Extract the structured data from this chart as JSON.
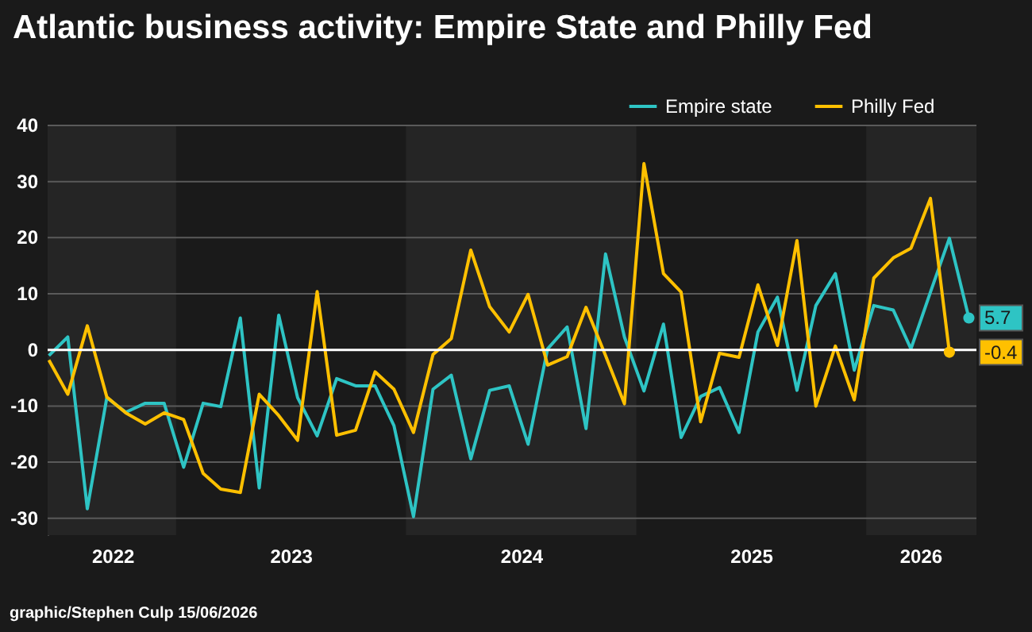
{
  "chart_data": {
    "type": "line",
    "title": "Atlantic business activity: Empire State and Philly Fed",
    "x": [
      "2022-06-13",
      "2022-07-13",
      "2022-08-13",
      "2022-09-13",
      "2022-10-13",
      "2022-11-13",
      "2022-12-13",
      "2023-01-13",
      "2023-02-13",
      "2023-03-13",
      "2023-04-13",
      "2023-05-13",
      "2023-06-13",
      "2023-07-13",
      "2023-08-13",
      "2023-09-13",
      "2023-10-13",
      "2023-11-13",
      "2023-12-13",
      "2024-01-13",
      "2024-02-13",
      "2024-03-13",
      "2024-04-13",
      "2024-05-13",
      "2024-06-13",
      "2024-07-13",
      "2024-08-13",
      "2024-09-13",
      "2024-10-13",
      "2024-11-13",
      "2024-12-13",
      "2025-01-13",
      "2025-02-13",
      "2025-03-13",
      "2025-04-13",
      "2025-05-13",
      "2025-06-13",
      "2025-07-13",
      "2025-08-13",
      "2025-09-13",
      "2025-10-13",
      "2025-11-13",
      "2025-12-13",
      "2026-01-13",
      "2026-02-13",
      "2026-03-13",
      "2026-04-13",
      "2026-05-13",
      "2026-06-13"
    ],
    "series": [
      {
        "name": "Empire state",
        "color": "#2ec4c4",
        "values": [
          -1.0,
          2.3,
          -28.3,
          -8.5,
          -11.1,
          -9.5,
          -9.5,
          -20.9,
          -9.5,
          -10.1,
          5.7,
          -24.6,
          6.2,
          -8.5,
          -15.3,
          -5.1,
          -6.4,
          -6.4,
          -13.5,
          -29.7,
          -7.0,
          -4.5,
          -19.4,
          -7.2,
          -6.4,
          -16.8,
          0.2,
          4.1,
          -14.0,
          17.1,
          2.3,
          -7.3,
          4.6,
          -15.6,
          -8.3,
          -6.7,
          -14.7,
          3.2,
          9.4,
          -7.2,
          7.9,
          13.6,
          -3.6,
          7.9,
          7.1,
          0.2,
          10.3,
          19.9,
          5.7
        ],
        "value_labels": [
          null,
          null,
          null,
          null,
          null,
          null,
          null,
          null,
          null,
          null,
          null,
          null,
          null,
          null,
          null,
          null,
          null,
          null,
          null,
          null,
          null,
          null,
          null,
          null,
          null,
          null,
          null,
          null,
          null,
          null,
          null,
          null,
          null,
          null,
          null,
          null,
          null,
          null,
          null,
          null,
          null,
          null,
          null,
          null,
          null,
          null,
          null,
          null,
          "5.7"
        ]
      },
      {
        "name": "Philly Fed",
        "color": "#ffc000",
        "values": [
          -1.8,
          -7.9,
          4.3,
          -8.4,
          -11.2,
          -13.2,
          -11.2,
          -12.4,
          -22.0,
          -24.8,
          -25.4,
          -7.9,
          -11.7,
          -16.1,
          10.4,
          -15.2,
          -14.3,
          -3.9,
          -7.0,
          -14.7,
          -0.8,
          2.0,
          17.8,
          7.7,
          3.2,
          9.9,
          -2.7,
          -1.2,
          7.6,
          -1.0,
          -9.6,
          33.2,
          13.6,
          10.3,
          -12.8,
          -0.6,
          -1.3,
          11.6,
          0.8,
          19.5,
          -10.0,
          0.7,
          -8.9,
          12.8,
          16.4,
          18.1,
          27.0,
          -0.4,
          null
        ],
        "value_labels": [
          null,
          null,
          null,
          null,
          null,
          null,
          null,
          null,
          null,
          null,
          null,
          null,
          null,
          null,
          null,
          null,
          null,
          null,
          null,
          null,
          null,
          null,
          null,
          null,
          null,
          null,
          null,
          null,
          null,
          null,
          null,
          null,
          null,
          null,
          null,
          null,
          null,
          null,
          null,
          null,
          null,
          null,
          null,
          null,
          null,
          null,
          null,
          "-0.4",
          null
        ]
      }
    ],
    "xlim": [
      "2022-06-11",
      "2026-06-25"
    ],
    "xticks": [
      {
        "value": "2022-09-22",
        "label": "2022"
      },
      {
        "value": "2023-07-02",
        "label": "2023"
      },
      {
        "value": "2024-07-02",
        "label": "2024"
      },
      {
        "value": "2025-07-02",
        "label": "2025"
      },
      {
        "value": "2026-03-28",
        "label": "2026"
      }
    ],
    "ylim": [
      -33,
      40
    ],
    "yticks": [
      -30,
      -20,
      -10,
      0,
      10,
      20,
      30,
      40
    ],
    "grid": "y",
    "legend": "top right",
    "ref_lines": [
      {
        "axis": "y",
        "value": 0,
        "color": "#ffffff"
      }
    ],
    "bands": [
      {
        "axis": "x",
        "from": "2022-06-11",
        "to": "2023-01-01",
        "color": "#252525"
      },
      {
        "axis": "x",
        "from": "2024-01-01",
        "to": "2025-01-01",
        "color": "#252525"
      },
      {
        "axis": "x",
        "from": "2026-01-01",
        "to": "2026-06-25",
        "color": "#252525"
      }
    ],
    "annotations": [
      "graphic/Stephen Culp 15/06/2026"
    ]
  }
}
